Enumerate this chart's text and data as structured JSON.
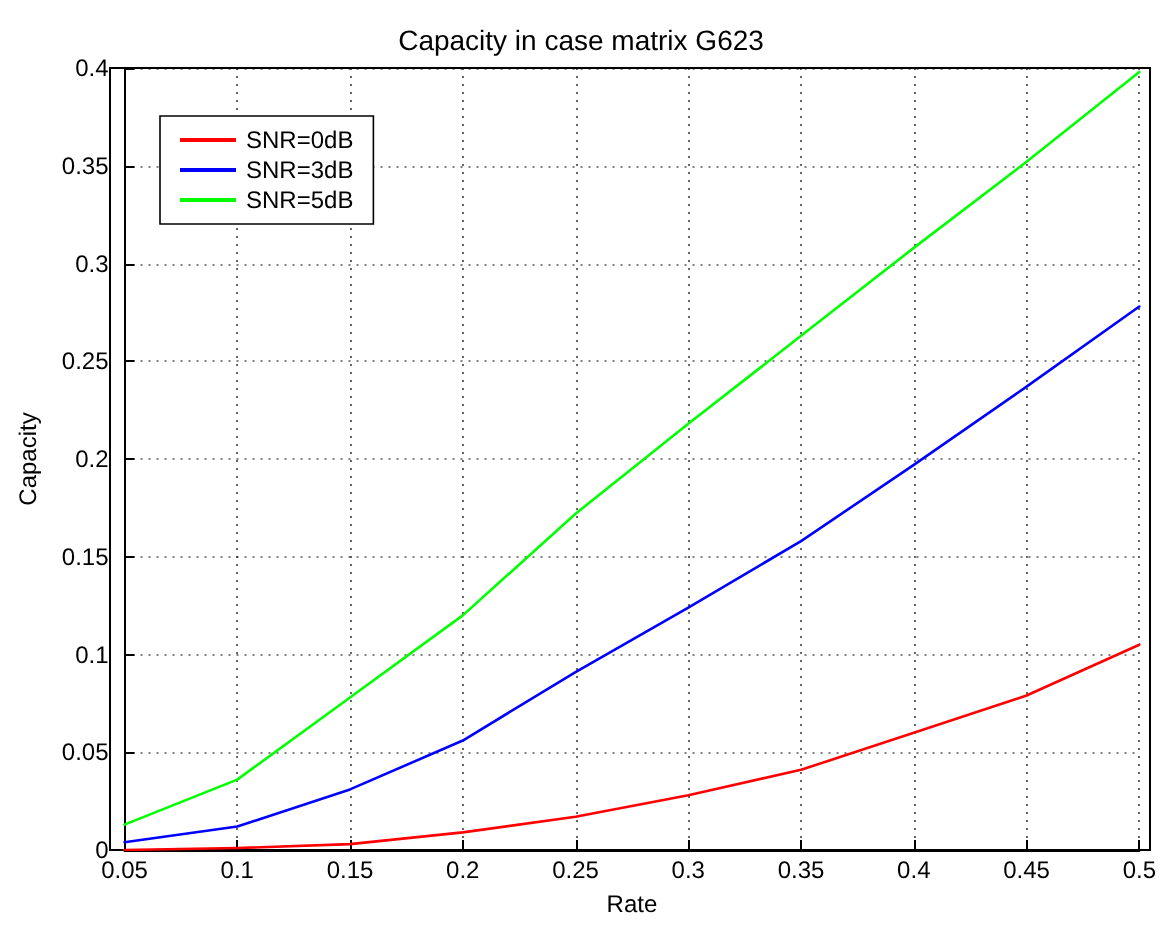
{
  "chart_data": {
    "type": "line",
    "title": "Capacity in case matrix G623",
    "xlabel": "Rate",
    "ylabel": "Capacity",
    "x": [
      0.05,
      0.1,
      0.15,
      0.2,
      0.25,
      0.3,
      0.35,
      0.4,
      0.45,
      0.5
    ],
    "series": [
      {
        "name": "SNR=0dB",
        "color": "#ff0000",
        "values": [
          0,
          0.001,
          0.003,
          0.009,
          0.017,
          0.028,
          0.041,
          0.06,
          0.079,
          0.105
        ]
      },
      {
        "name": "SNR=3dB",
        "color": "#0000ff",
        "values": [
          0.004,
          0.012,
          0.031,
          0.056,
          0.091,
          0.124,
          0.158,
          0.197,
          0.237,
          0.278
        ]
      },
      {
        "name": "SNR=5dB",
        "color": "#00ff00",
        "values": [
          0.013,
          0.036,
          0.078,
          0.12,
          0.172,
          0.218,
          0.263,
          0.308,
          0.352,
          0.398
        ]
      }
    ],
    "xlim": [
      0.05,
      0.5
    ],
    "xticks": [
      0.05,
      0.1,
      0.15,
      0.2,
      0.25,
      0.3,
      0.35,
      0.4,
      0.45,
      0.5
    ],
    "ylim": [
      0,
      0.4
    ],
    "yticks": [
      0,
      0.05,
      0.1,
      0.15,
      0.2,
      0.25,
      0.3,
      0.35,
      0.4
    ],
    "grid": true,
    "legend": "top left",
    "marker": "none",
    "line_style": "solid"
  }
}
